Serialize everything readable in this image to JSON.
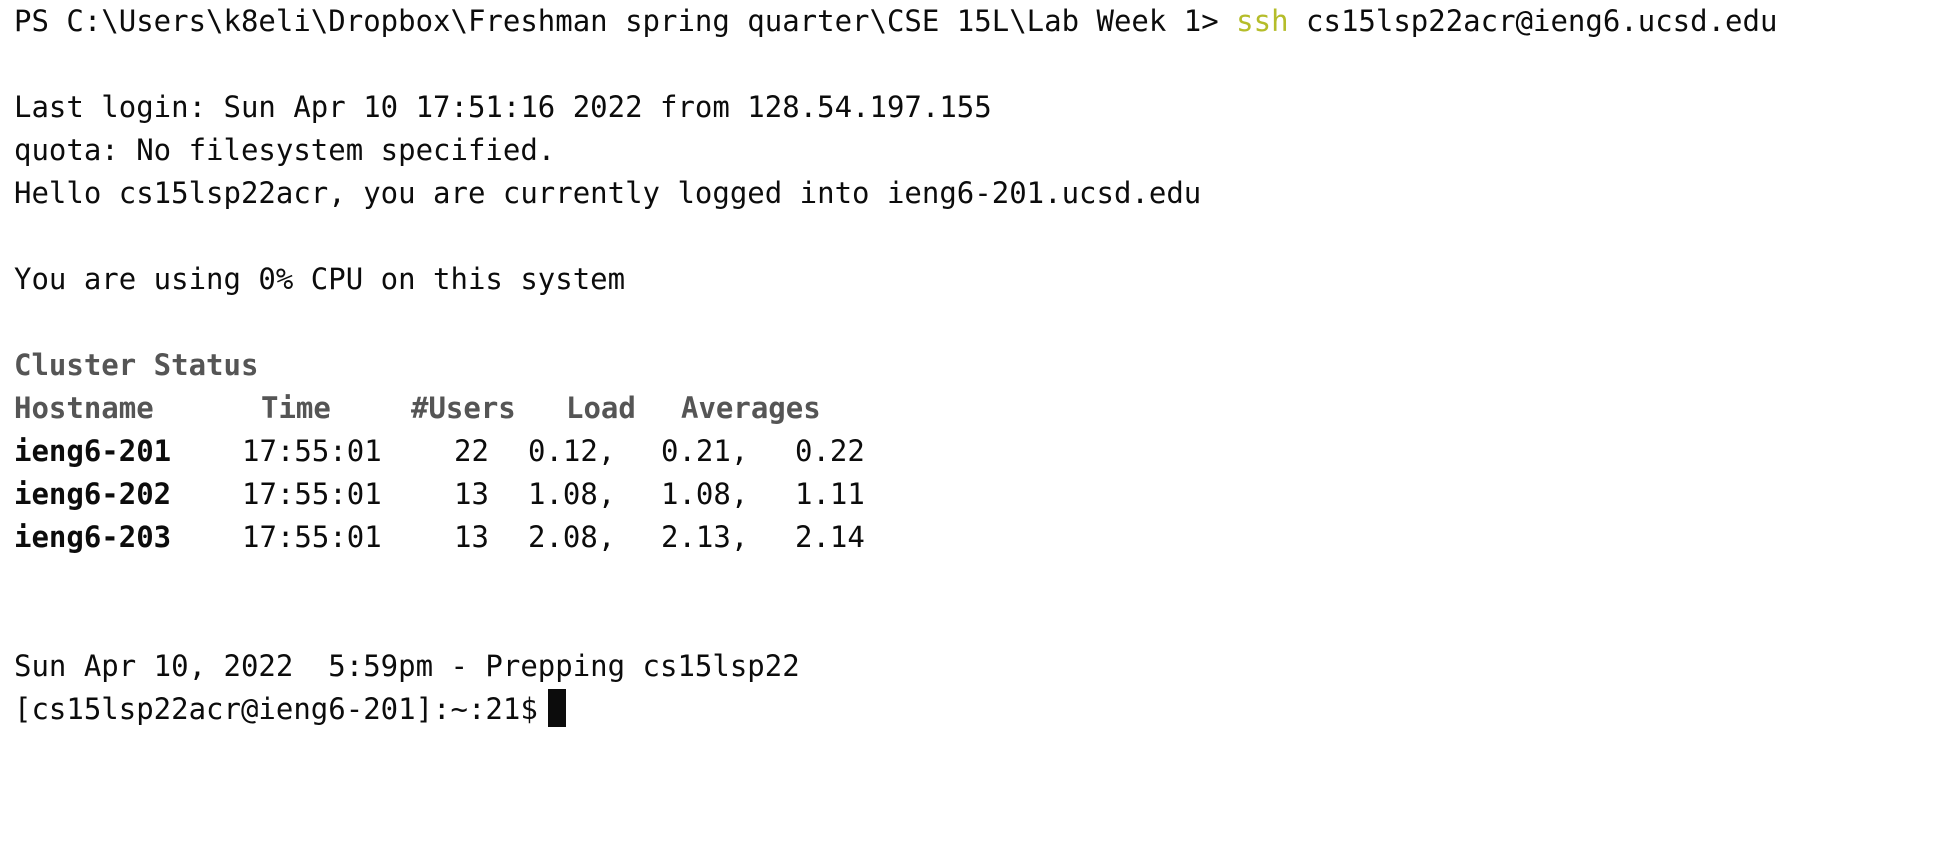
{
  "terminal": {
    "ps_prompt": "PS C:\\Users\\k8eli\\Dropbox\\Freshman spring quarter\\CSE 15L\\Lab Week 1> ",
    "ssh_command": "ssh",
    "ssh_target": " cs15lsp22acr@ieng6.ucsd.edu",
    "last_login": "Last login: Sun Apr 10 17:51:16 2022 from 128.54.197.155",
    "quota": "quota: No filesystem specified.",
    "hello": "Hello cs15lsp22acr, you are currently logged into ieng6-201.ucsd.edu",
    "cpu": "You are using 0% CPU on this system",
    "cluster_title": "Cluster Status",
    "headers": {
      "hostname": "Hostname",
      "time": "Time",
      "users": "#Users",
      "load": "Load",
      "averages": "Averages"
    },
    "rows": [
      {
        "host": "ieng6-201",
        "time": "17:55:01",
        "users": "22",
        "l1": "0.12,",
        "l2": "0.21,",
        "l3": "0.22"
      },
      {
        "host": "ieng6-202",
        "time": "17:55:01",
        "users": "13",
        "l1": "1.08,",
        "l2": "1.08,",
        "l3": "1.11"
      },
      {
        "host": "ieng6-203",
        "time": "17:55:01",
        "users": "13",
        "l1": "2.08,",
        "l2": "2.13,",
        "l3": "2.14"
      }
    ],
    "prepping": "Sun Apr 10, 2022  5:59pm - Prepping cs15lsp22",
    "shell_prompt": "[cs15lsp22acr@ieng6-201]:~:21$"
  }
}
